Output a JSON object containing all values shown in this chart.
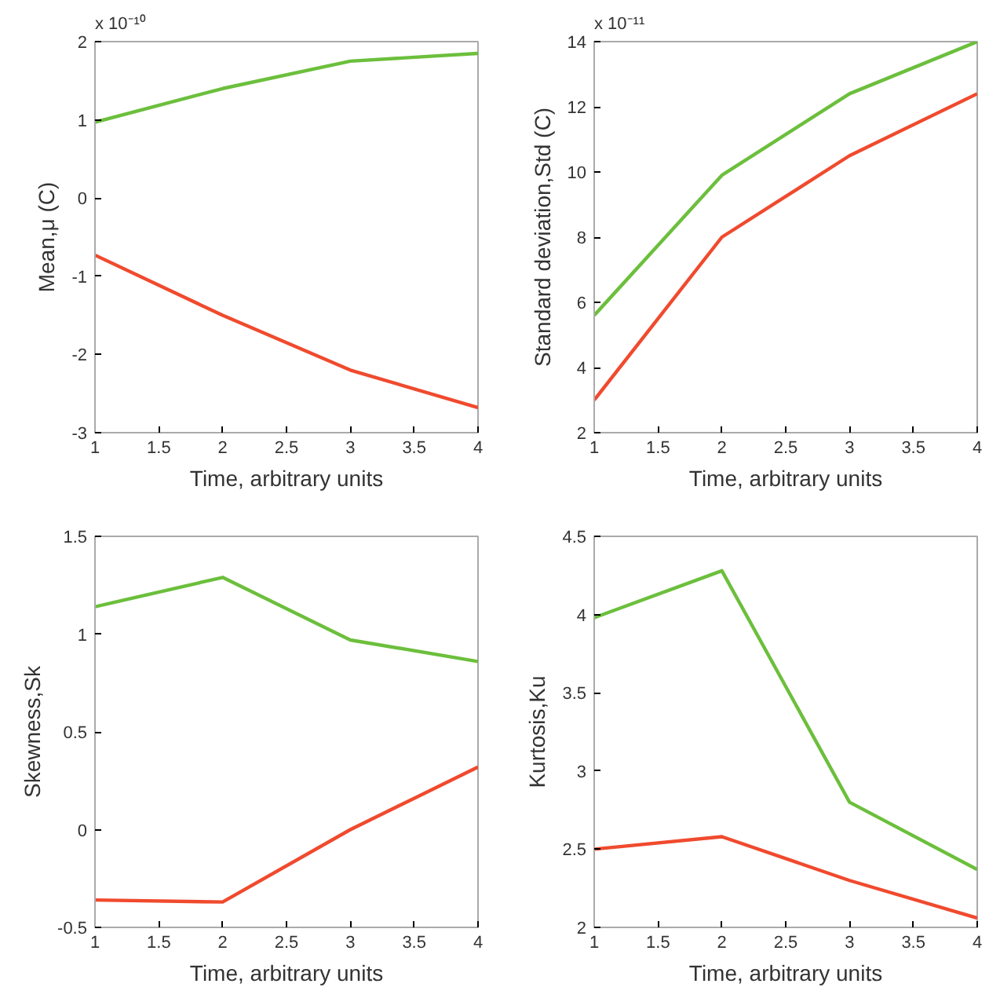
{
  "chart_data": [
    {
      "type": "line",
      "x": [
        1,
        2,
        3,
        4
      ],
      "xlabel": "Time, arbitrary units",
      "ylabel": "Mean,μ (C)",
      "annotations": [
        "x 10⁻¹⁰"
      ],
      "xlim": [
        1,
        4
      ],
      "xticks": [
        1,
        1.5,
        2,
        2.5,
        3,
        3.5,
        4
      ],
      "ylim": [
        -3,
        2
      ],
      "yticks": [
        -3,
        -2,
        -1,
        0,
        1,
        2
      ],
      "grid": false,
      "series": [
        {
          "color": "#6cbf3c",
          "values": [
            0.97,
            1.4,
            1.75,
            1.85
          ]
        },
        {
          "color": "#f04a2e",
          "values": [
            -0.73,
            -1.5,
            -2.2,
            -2.68
          ]
        }
      ]
    },
    {
      "type": "line",
      "x": [
        1,
        2,
        3,
        4
      ],
      "xlabel": "Time, arbitrary units",
      "ylabel": "Standard deviation,Std (C)",
      "annotations": [
        "x 10⁻¹¹"
      ],
      "xlim": [
        1,
        4
      ],
      "xticks": [
        1,
        1.5,
        2,
        2.5,
        3,
        3.5,
        4
      ],
      "ylim": [
        2,
        14
      ],
      "yticks": [
        2,
        4,
        6,
        8,
        10,
        12,
        14
      ],
      "grid": false,
      "series": [
        {
          "color": "#6cbf3c",
          "values": [
            5.6,
            9.9,
            12.4,
            14.0
          ]
        },
        {
          "color": "#f04a2e",
          "values": [
            3.0,
            8.0,
            10.5,
            12.4
          ]
        }
      ]
    },
    {
      "type": "line",
      "x": [
        1,
        2,
        3,
        4
      ],
      "xlabel": "Time, arbitrary units",
      "ylabel": "Skewness,Sk",
      "xlim": [
        1,
        4
      ],
      "xticks": [
        1,
        1.5,
        2,
        2.5,
        3,
        3.5,
        4
      ],
      "ylim": [
        -0.5,
        1.5
      ],
      "yticks": [
        -0.5,
        0,
        0.5,
        1,
        1.5
      ],
      "grid": false,
      "series": [
        {
          "color": "#6cbf3c",
          "values": [
            1.14,
            1.29,
            0.97,
            0.86
          ]
        },
        {
          "color": "#f04a2e",
          "values": [
            -0.36,
            -0.37,
            0.0,
            0.32
          ]
        }
      ]
    },
    {
      "type": "line",
      "x": [
        1,
        2,
        3,
        4
      ],
      "xlabel": "Time, arbitrary units",
      "ylabel": "Kurtosis,Ku",
      "xlim": [
        1,
        4
      ],
      "xticks": [
        1,
        1.5,
        2,
        2.5,
        3,
        3.5,
        4
      ],
      "ylim": [
        2,
        4.5
      ],
      "yticks": [
        2,
        2.5,
        3,
        3.5,
        4,
        4.5
      ],
      "grid": false,
      "series": [
        {
          "color": "#6cbf3c",
          "values": [
            3.98,
            4.28,
            2.8,
            2.37
          ]
        },
        {
          "color": "#f04a2e",
          "values": [
            2.5,
            2.58,
            2.3,
            2.06
          ]
        }
      ]
    }
  ]
}
